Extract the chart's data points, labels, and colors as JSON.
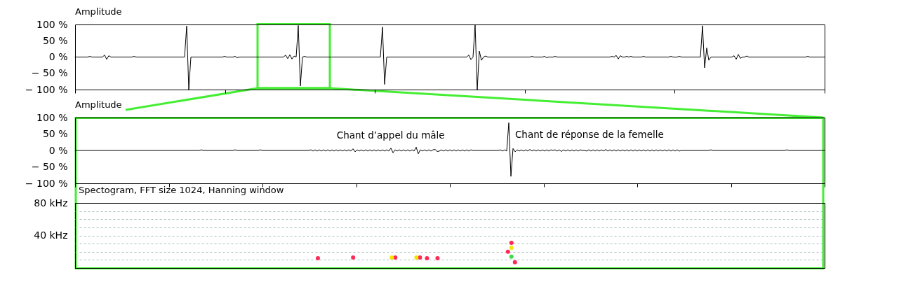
{
  "chart_data": [
    {
      "type": "line",
      "title": "Amplitude",
      "categories": [
        null,
        null,
        null,
        null,
        null,
        null,
        null,
        null,
        null,
        null,
        null,
        null,
        null,
        null,
        null,
        null,
        null,
        null,
        null,
        null,
        null,
        null,
        null,
        null,
        null,
        null,
        null,
        null,
        null,
        null,
        null,
        null,
        null,
        null,
        null,
        null,
        null,
        null,
        null,
        null,
        null,
        null,
        null,
        null,
        null,
        null,
        null,
        null,
        null,
        null,
        null,
        null,
        null,
        null,
        null,
        null,
        null,
        null,
        null,
        null,
        null,
        null,
        null,
        null,
        null,
        null,
        null,
        null,
        null,
        null,
        null,
        null,
        null,
        null,
        null,
        null,
        null,
        null,
        null,
        null,
        null,
        null,
        null,
        null,
        null,
        null,
        null,
        null,
        null,
        null,
        null,
        null,
        null,
        null,
        null,
        null,
        null,
        null,
        null,
        null,
        null,
        null,
        null,
        null,
        null,
        null,
        null,
        null,
        null,
        null,
        null,
        null,
        null,
        null,
        null,
        null,
        null,
        null,
        null,
        null,
        null,
        null,
        null,
        null,
        null,
        null,
        null,
        null,
        null,
        null,
        null,
        null,
        null,
        null,
        null,
        null,
        null,
        null,
        null,
        null,
        null,
        null,
        null,
        null,
        null,
        null,
        null,
        null,
        null,
        null,
        null,
        null,
        null,
        null,
        null,
        null,
        null,
        null,
        null,
        null,
        null,
        null,
        null,
        null,
        null,
        null,
        null,
        null,
        null,
        null,
        null,
        null,
        null,
        null,
        null,
        null,
        null,
        null,
        null,
        null,
        null,
        null,
        null,
        null,
        null,
        null,
        null,
        null,
        null,
        null,
        null,
        null,
        null,
        null,
        null,
        null,
        null,
        null,
        null,
        null,
        null,
        null,
        null,
        null,
        null,
        null,
        null,
        null,
        null,
        null,
        null,
        null,
        null,
        null,
        null,
        null,
        null,
        null,
        null,
        null,
        null,
        null,
        null,
        null,
        null,
        null,
        null,
        null,
        null,
        null,
        null,
        null,
        null,
        null,
        null,
        null,
        null,
        null,
        null,
        null,
        null,
        null,
        null,
        null,
        null,
        null,
        null,
        null,
        null,
        null,
        null,
        null,
        null,
        null,
        null,
        null,
        null,
        null,
        null,
        null,
        null,
        null,
        null,
        null,
        null,
        null,
        null,
        null,
        null,
        null,
        null,
        null,
        null,
        null,
        null,
        null,
        null,
        null,
        null,
        null,
        null,
        null,
        null,
        null,
        null,
        null,
        null,
        null,
        null,
        null,
        null,
        null,
        null,
        null,
        null,
        null,
        null,
        null,
        null,
        null,
        null,
        null,
        null,
        null,
        null,
        null,
        null,
        null,
        null,
        null,
        null,
        null,
        null,
        null,
        null,
        null,
        null,
        null,
        null,
        null,
        null,
        null,
        null,
        null,
        null,
        null,
        null,
        null,
        null,
        null,
        null,
        null,
        null,
        null,
        null,
        null,
        null,
        null,
        null,
        null,
        null,
        null,
        null,
        null,
        null,
        null,
        null,
        null,
        null,
        null,
        null,
        null,
        null,
        null,
        null,
        null,
        null
      ],
      "series": [
        {
          "color": "#000000",
          "values": [
            0,
            0,
            0,
            0,
            0,
            0,
            0,
            2,
            0,
            0,
            0,
            0,
            0,
            0,
            6,
            -7,
            4,
            0,
            0,
            0,
            0,
            0,
            0,
            0,
            0,
            0,
            0,
            0,
            2,
            0,
            0,
            0,
            0,
            0,
            0,
            0,
            0,
            0,
            0,
            0,
            0,
            0,
            0,
            0,
            0,
            0,
            0,
            0,
            0,
            0,
            0,
            0,
            0,
            95,
            -100,
            0,
            0,
            0,
            0,
            0,
            0,
            0,
            0,
            0,
            0,
            0,
            0,
            0,
            0,
            0,
            0,
            2,
            0,
            0,
            0,
            0,
            2,
            -2,
            0,
            0,
            0,
            0,
            0,
            0,
            0,
            0,
            0,
            0,
            0,
            0,
            0,
            0,
            0,
            0,
            0,
            0,
            0,
            0,
            0,
            0,
            6,
            -5,
            7,
            -6,
            3,
            0,
            97,
            -89,
            0,
            2,
            0,
            0,
            0,
            0,
            0,
            0,
            0,
            0,
            0,
            0,
            0,
            0,
            0,
            0,
            0,
            0,
            0,
            0,
            0,
            0,
            0,
            0,
            0,
            0,
            0,
            0,
            0,
            0,
            0,
            0,
            0,
            0,
            0,
            0,
            0,
            0,
            92,
            -84,
            0,
            0,
            0,
            0,
            0,
            0,
            0,
            0,
            0,
            0,
            0,
            0,
            0,
            0,
            0,
            0,
            0,
            0,
            0,
            0,
            0,
            0,
            0,
            0,
            0,
            0,
            0,
            0,
            0,
            0,
            0,
            0,
            0,
            0,
            0,
            0,
            0,
            0,
            0,
            6,
            -8,
            0,
            100,
            -100,
            18,
            -10,
            0,
            3,
            0,
            0,
            0,
            0,
            0,
            0,
            0,
            0,
            0,
            0,
            0,
            0,
            0,
            0,
            0,
            0,
            0,
            0,
            0,
            0,
            0,
            2,
            0,
            0,
            0,
            0,
            0,
            2,
            -2,
            0,
            0,
            0,
            2,
            0,
            0,
            0,
            0,
            0,
            0,
            0,
            0,
            0,
            0,
            0,
            0,
            0,
            0,
            0,
            0,
            0,
            0,
            0,
            0,
            0,
            0,
            0,
            0,
            0,
            0,
            2,
            0,
            5,
            -6,
            4,
            0,
            0,
            2,
            0,
            2,
            0,
            0,
            0,
            0,
            0,
            2,
            0,
            0,
            0,
            0,
            0,
            0,
            0,
            0,
            0,
            0,
            0,
            0,
            2,
            0,
            0,
            0,
            2,
            0,
            0,
            0,
            0,
            0,
            0,
            0,
            0,
            0,
            0,
            96,
            -33,
            28,
            -10,
            0,
            0,
            0,
            0,
            0,
            0,
            0,
            0,
            0,
            0,
            0,
            4,
            -7,
            8,
            -4,
            0,
            0,
            3,
            0,
            0,
            0,
            0,
            0,
            0,
            0,
            0,
            0,
            0,
            0,
            0,
            0,
            0,
            0,
            0,
            0,
            0,
            0,
            0,
            0,
            0,
            0,
            0,
            0,
            0,
            0,
            0,
            2,
            0,
            0,
            0,
            0,
            0,
            0,
            0,
            0
          ]
        }
      ],
      "ylim": [
        -100,
        100
      ],
      "yticks": [
        {
          "value": 100,
          "label": "100 %"
        },
        {
          "value": 50,
          "label": "50 %"
        },
        {
          "value": 0,
          "label": "0 %"
        },
        {
          "value": -50,
          "label": "− 50 %"
        },
        {
          "value": -100,
          "label": "− 100 %"
        }
      ]
    },
    {
      "type": "line",
      "title": "Amplitude",
      "categories": [
        null,
        null,
        null,
        null,
        null,
        null,
        null,
        null,
        null,
        null,
        null,
        null,
        null,
        null,
        null,
        null,
        null,
        null,
        null,
        null,
        null,
        null,
        null,
        null,
        null,
        null,
        null,
        null,
        null,
        null,
        null,
        null,
        null,
        null,
        null,
        null,
        null,
        null,
        null,
        null,
        null,
        null,
        null,
        null,
        null,
        null,
        null,
        null,
        null,
        null,
        null,
        null,
        null,
        null,
        null,
        null,
        null,
        null,
        null,
        null,
        null,
        null,
        null,
        null,
        null,
        null,
        null,
        null,
        null,
        null,
        null,
        null,
        null,
        null,
        null,
        null,
        null,
        null,
        null,
        null,
        null,
        null,
        null,
        null,
        null,
        null,
        null,
        null,
        null,
        null,
        null,
        null,
        null,
        null,
        null,
        null,
        null,
        null,
        null,
        null,
        null,
        null,
        null,
        null,
        null,
        null,
        null,
        null,
        null,
        null,
        null,
        null,
        null,
        null,
        null,
        null,
        null,
        null,
        null,
        null,
        null,
        null,
        null,
        null,
        null,
        null,
        null,
        null,
        null,
        null,
        null,
        null,
        null,
        null,
        null,
        null,
        null,
        null,
        null,
        null,
        null,
        null,
        null,
        null,
        null,
        null,
        null,
        null,
        null,
        null,
        null,
        null,
        null,
        null,
        null,
        null,
        null,
        null,
        null,
        null,
        null,
        null,
        null,
        null,
        null,
        null,
        null,
        null,
        null,
        null,
        null,
        null,
        null,
        null,
        null,
        null,
        null,
        null,
        null,
        null,
        null,
        null,
        null,
        null,
        null,
        null,
        null,
        null,
        null,
        null,
        null,
        null,
        null,
        null,
        null,
        null,
        null,
        null,
        null,
        null,
        null,
        null,
        null,
        null,
        null,
        null,
        null,
        null,
        null,
        null,
        null,
        null,
        null,
        null,
        null,
        null,
        null,
        null,
        null,
        null,
        null,
        null,
        null,
        null,
        null,
        null,
        null,
        null,
        null,
        null,
        null,
        null,
        null,
        null,
        null,
        null,
        null,
        null,
        null,
        null,
        null,
        null,
        null,
        null,
        null,
        null,
        null,
        null,
        null,
        null,
        null,
        null,
        null,
        null,
        null,
        null,
        null,
        null,
        null,
        null,
        null,
        null,
        null,
        null,
        null,
        null,
        null,
        null,
        null,
        null,
        null,
        null,
        null,
        null,
        null,
        null,
        null,
        null,
        null,
        null,
        null,
        null,
        null,
        null,
        null,
        null,
        null,
        null,
        null,
        null,
        null,
        null,
        null,
        null,
        null,
        null,
        null,
        null,
        null,
        null,
        null,
        null,
        null,
        null,
        null,
        null,
        null,
        null,
        null,
        null,
        null,
        null,
        null,
        null,
        null,
        null,
        null,
        null,
        null,
        null,
        null,
        null,
        null,
        null,
        null,
        null,
        null,
        null,
        null,
        null,
        null,
        null,
        null,
        null,
        null,
        null,
        null,
        null,
        null,
        null,
        null,
        null,
        null,
        null,
        null,
        null,
        null,
        null,
        null,
        null,
        null,
        null,
        null,
        null,
        null,
        null,
        null
      ],
      "series": [
        {
          "color": "#000000",
          "values": [
            0,
            0,
            0,
            0,
            0,
            0,
            0,
            0,
            0,
            0,
            0,
            0,
            0,
            0,
            0,
            0,
            0,
            0,
            0,
            0,
            0,
            0,
            0,
            0,
            0,
            0,
            0,
            0,
            0,
            0,
            0,
            0,
            0,
            0,
            0,
            0,
            0,
            0,
            0,
            0,
            0,
            0,
            0,
            0,
            0,
            0,
            0,
            0,
            0,
            0,
            0,
            0,
            0,
            0,
            0,
            0,
            0,
            0,
            0,
            0,
            2,
            0,
            0,
            0,
            0,
            0,
            0,
            0,
            0,
            0,
            0,
            0,
            0,
            0,
            0,
            0,
            2,
            0,
            0,
            0,
            0,
            0,
            0,
            0,
            0,
            0,
            0,
            0,
            2,
            0,
            0,
            0,
            0,
            0,
            0,
            0,
            0,
            0,
            0,
            0,
            0,
            0,
            0,
            0,
            0,
            0,
            0,
            0,
            0,
            0,
            0,
            0,
            2,
            -2,
            2,
            -2,
            2,
            -2,
            2,
            -2,
            2,
            -2,
            2,
            -2,
            2,
            -2,
            2,
            -2,
            2,
            -2,
            2,
            -2,
            5,
            -4,
            2,
            -2,
            2,
            -2,
            2,
            -2,
            2,
            -2,
            2,
            -2,
            2,
            -2,
            2,
            -2,
            2,
            -2,
            7,
            -7,
            2,
            -2,
            2,
            -2,
            2,
            -2,
            2,
            -2,
            2,
            -2,
            10,
            -10,
            2,
            -2,
            2,
            -2,
            2,
            -2,
            2,
            3,
            -3,
            -2,
            2,
            -2,
            2,
            -2,
            2,
            -2,
            2,
            -2,
            2,
            -2,
            2,
            -2,
            2,
            -2,
            2,
            0,
            0,
            0,
            0,
            0,
            0,
            0,
            0,
            0,
            0,
            0,
            0,
            0,
            2,
            -2,
            2,
            -2,
            84,
            -79,
            6,
            -4,
            2,
            -2,
            2,
            -2,
            2,
            -2,
            3,
            -2,
            2,
            -2,
            2,
            -2,
            2,
            -2,
            2,
            -2,
            2,
            0,
            2,
            -2,
            2,
            -3,
            2,
            -2,
            2,
            -2,
            2,
            -2,
            2,
            -2,
            2,
            0,
            0,
            -2,
            2,
            -2,
            2,
            -2,
            2,
            -2,
            2,
            -2,
            3,
            -2,
            2,
            -2,
            2,
            -2,
            2,
            -2,
            2,
            -2,
            2,
            -2,
            2,
            -2,
            2,
            -2,
            2,
            -2,
            2,
            -2,
            2,
            -2,
            2,
            -2,
            2,
            -2,
            2,
            -2,
            2,
            -2,
            2,
            -2,
            2,
            -2,
            2,
            -2,
            0,
            0,
            0,
            0,
            0,
            0,
            0,
            0,
            0,
            0,
            0,
            0,
            0,
            0,
            2,
            0,
            0,
            0,
            0,
            0,
            0,
            0,
            0,
            0,
            0,
            0,
            0,
            0,
            0,
            0,
            0,
            0,
            0,
            0,
            0,
            0,
            0,
            0,
            0,
            0,
            0,
            0,
            0,
            0,
            0,
            0,
            0,
            0,
            0,
            0,
            2,
            0,
            0,
            0,
            0,
            0,
            0,
            0,
            0,
            0,
            0,
            0,
            0,
            0,
            0,
            0,
            0,
            0,
            0
          ]
        }
      ],
      "ylim": [
        -100,
        100
      ],
      "yticks": [
        {
          "value": 100,
          "label": "100 %"
        },
        {
          "value": 50,
          "label": "50 %"
        },
        {
          "value": 0,
          "label": "0 %"
        },
        {
          "value": -50,
          "label": "− 50 %"
        },
        {
          "value": -100,
          "label": "− 100 %"
        }
      ],
      "annotations": [
        "Chant d’appel du mâle",
        "Chant de réponse de la femelle"
      ]
    },
    {
      "type": "scatter",
      "title": "Spectogram, FFT size 1024, Hanning window",
      "categories": [
        null,
        null,
        null,
        null,
        null,
        null,
        null,
        null,
        null,
        null,
        null,
        null,
        null,
        null,
        null,
        null,
        null,
        null,
        null,
        null,
        null,
        null,
        null,
        null,
        null,
        null,
        null,
        null,
        null,
        null,
        null,
        null,
        null,
        null,
        null,
        null,
        null,
        null,
        null,
        null,
        null,
        null,
        null,
        null,
        null,
        null,
        null,
        null,
        null,
        null,
        null,
        null,
        null,
        null,
        null,
        null,
        null,
        null,
        null,
        null,
        null,
        null,
        null,
        null,
        null,
        null,
        null,
        null,
        null,
        null,
        null,
        null,
        null,
        null,
        null,
        null,
        null,
        null,
        null,
        null,
        null,
        null,
        null,
        null,
        null,
        null,
        null,
        null,
        null,
        null,
        null,
        null,
        null,
        null,
        null,
        null,
        null,
        null,
        null,
        null,
        null,
        null,
        null,
        null,
        null,
        null,
        null,
        null,
        null,
        null,
        null,
        null,
        null,
        null,
        null,
        null,
        null,
        null,
        null,
        null,
        null,
        null,
        null,
        null,
        null,
        null,
        null,
        null,
        null,
        null,
        null,
        null,
        null,
        null,
        null,
        null,
        null,
        null,
        null,
        null,
        null,
        null,
        null,
        null,
        null,
        null,
        null,
        null,
        null,
        null,
        null,
        null,
        null,
        null,
        null,
        null,
        null,
        null,
        null,
        null,
        null,
        null,
        null,
        null,
        null,
        null,
        null,
        null,
        null,
        null,
        null,
        null,
        null,
        null,
        null,
        null,
        null,
        null,
        null,
        null,
        null,
        null,
        null,
        null,
        null,
        null,
        null,
        null,
        null,
        null,
        null,
        null,
        null,
        null,
        null,
        null,
        null,
        null,
        null,
        null,
        null,
        null,
        null,
        null,
        null,
        null,
        null,
        null,
        null,
        null,
        null,
        null,
        null,
        null
      ],
      "series": [
        {
          "color": "#ff2a55",
          "values": [
            null,
            null,
            null,
            null,
            null,
            null,
            null,
            null,
            null,
            null,
            null,
            null,
            null,
            null,
            null,
            null,
            null,
            null,
            null,
            null,
            null,
            null,
            null,
            null,
            null,
            null,
            null,
            null,
            null,
            null,
            null,
            null,
            null,
            null,
            null,
            null,
            null,
            null,
            null,
            null,
            null,
            null,
            null,
            null,
            null,
            null,
            null,
            null,
            null,
            null,
            null,
            null,
            null,
            null,
            null,
            null,
            null,
            null,
            null,
            null,
            null,
            null,
            null,
            null,
            null,
            null,
            null,
            null,
            null,
            12,
            null,
            null,
            null,
            null,
            null,
            null,
            null,
            null,
            null,
            13,
            null,
            null,
            null,
            null,
            null,
            null,
            null,
            null,
            null,
            null,
            null,
            13,
            null,
            null,
            null,
            null,
            null,
            null,
            13,
            null,
            12,
            null,
            null,
            12,
            null,
            null,
            null,
            null,
            null,
            null,
            null,
            null,
            null,
            null,
            null,
            null,
            null,
            null,
            null,
            null,
            null,
            null,
            null,
            20,
            31,
            7,
            null,
            null,
            null,
            null,
            null,
            null,
            null,
            null,
            null,
            null,
            null,
            null,
            null,
            null,
            null,
            null,
            null,
            null,
            null,
            null,
            null,
            null,
            null,
            null,
            null,
            null,
            null,
            null,
            null,
            null,
            null,
            null,
            null,
            null,
            null,
            null,
            null,
            null,
            null,
            null,
            null,
            null,
            null,
            null,
            null,
            null,
            null,
            null,
            null,
            null,
            null,
            null,
            null,
            null,
            null,
            null,
            null,
            null,
            null,
            null,
            null,
            null,
            null,
            null,
            null,
            null,
            null,
            null,
            null,
            null,
            null,
            null,
            null,
            null,
            null,
            null,
            null,
            null,
            null,
            null,
            null,
            null,
            null,
            null,
            null,
            null,
            null,
            null
          ]
        },
        {
          "color": "#f2e600",
          "values": [
            null,
            null,
            null,
            null,
            null,
            null,
            null,
            null,
            null,
            null,
            null,
            null,
            null,
            null,
            null,
            null,
            null,
            null,
            null,
            null,
            null,
            null,
            null,
            null,
            null,
            null,
            null,
            null,
            null,
            null,
            null,
            null,
            null,
            null,
            null,
            null,
            null,
            null,
            null,
            null,
            null,
            null,
            null,
            null,
            null,
            null,
            null,
            null,
            null,
            null,
            null,
            null,
            null,
            null,
            null,
            null,
            null,
            null,
            null,
            null,
            null,
            null,
            null,
            null,
            null,
            null,
            null,
            null,
            null,
            null,
            null,
            null,
            null,
            null,
            null,
            null,
            null,
            null,
            null,
            null,
            null,
            null,
            null,
            null,
            null,
            null,
            null,
            null,
            null,
            null,
            13,
            null,
            null,
            null,
            null,
            null,
            null,
            13,
            null,
            null,
            null,
            null,
            null,
            null,
            null,
            null,
            null,
            null,
            null,
            null,
            null,
            null,
            null,
            null,
            null,
            null,
            null,
            null,
            null,
            null,
            null,
            null,
            null,
            null,
            25,
            null,
            null,
            null,
            null,
            null,
            null,
            null,
            null,
            null,
            null,
            null,
            null,
            null,
            null,
            null,
            null,
            null,
            null,
            null,
            null,
            null,
            null,
            null,
            null,
            null,
            null,
            null,
            null,
            null,
            null,
            null,
            null,
            null,
            null,
            null,
            null,
            null,
            null,
            null,
            null,
            null,
            null,
            null,
            null,
            null,
            null,
            null,
            null,
            null,
            null,
            null,
            null,
            null,
            null,
            null,
            null,
            null,
            null,
            null,
            null,
            null,
            null,
            null,
            null,
            null,
            null,
            null,
            null,
            null,
            null,
            null,
            null,
            null,
            null,
            null,
            null,
            null,
            null,
            null,
            null,
            null,
            null,
            null,
            null,
            null,
            null,
            null,
            null,
            null
          ]
        },
        {
          "color": "#3fd94a",
          "values": [
            null,
            null,
            null,
            null,
            null,
            null,
            null,
            null,
            null,
            null,
            null,
            null,
            null,
            null,
            null,
            null,
            null,
            null,
            null,
            null,
            null,
            null,
            null,
            null,
            null,
            null,
            null,
            null,
            null,
            null,
            null,
            null,
            null,
            null,
            null,
            null,
            null,
            null,
            null,
            null,
            null,
            null,
            null,
            null,
            null,
            null,
            null,
            null,
            null,
            null,
            null,
            null,
            null,
            null,
            null,
            null,
            null,
            null,
            null,
            null,
            null,
            null,
            null,
            null,
            null,
            null,
            null,
            null,
            null,
            null,
            null,
            null,
            null,
            null,
            null,
            null,
            null,
            null,
            null,
            null,
            null,
            null,
            null,
            null,
            null,
            null,
            null,
            null,
            null,
            null,
            null,
            null,
            null,
            null,
            null,
            null,
            null,
            null,
            null,
            null,
            null,
            null,
            null,
            null,
            null,
            null,
            null,
            null,
            null,
            null,
            null,
            null,
            null,
            null,
            null,
            null,
            null,
            null,
            null,
            null,
            null,
            null,
            null,
            null,
            14,
            null,
            null,
            null,
            null,
            null,
            null,
            null,
            null,
            null,
            null,
            null,
            null,
            null,
            null,
            null,
            null,
            null,
            null,
            null,
            null,
            null,
            null,
            null,
            null,
            null,
            null,
            null,
            null,
            null,
            null,
            null,
            null,
            null,
            null,
            null,
            null,
            null,
            null,
            null,
            null,
            null,
            null,
            null,
            null,
            null,
            null,
            null,
            null,
            null,
            null,
            null,
            null,
            null,
            null,
            null,
            null,
            null,
            null,
            null,
            null,
            null,
            null,
            null,
            null,
            null,
            null,
            null,
            null,
            null,
            null,
            null,
            null,
            null,
            null,
            null,
            null,
            null,
            null,
            null,
            null,
            null,
            null,
            null,
            null,
            null,
            null,
            null,
            null,
            null
          ]
        }
      ],
      "ylim": [
        0,
        80
      ],
      "yticks": [
        {
          "value": 10,
          "label": null
        },
        {
          "value": 20,
          "label": null
        },
        {
          "value": 30,
          "label": null
        },
        {
          "value": 40,
          "label": "40 kHz"
        },
        {
          "value": 50,
          "label": null
        },
        {
          "value": 60,
          "label": null
        },
        {
          "value": 70,
          "label": null
        },
        {
          "value": 80,
          "label": "80 kHz"
        }
      ],
      "grid": "y",
      "marker": "circle"
    }
  ]
}
